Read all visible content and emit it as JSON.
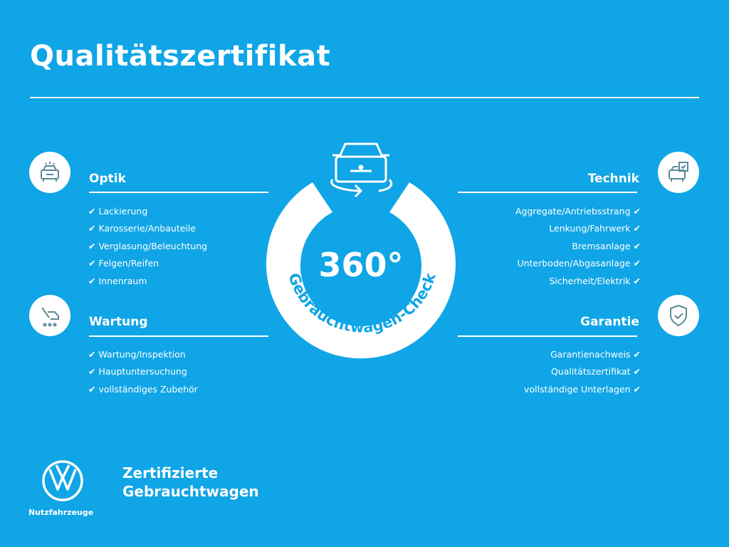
{
  "title": "Qualitätszertifikat",
  "colors": {
    "background": "#0fa5e6",
    "foreground": "#ffffff",
    "icon": "#5a8a9a"
  },
  "center": {
    "big": "360°",
    "arc_text": "Gebrauchtwagen-Check",
    "icon": "car-rotate-icon"
  },
  "check_glyph": "✔",
  "sections": {
    "optik": {
      "heading": "Optik",
      "icon": "car-front-icon",
      "items": [
        "Lackierung",
        "Karosserie/Anbauteile",
        "Verglasung/Beleuchtung",
        "Felgen/Reifen",
        "Innenraum"
      ]
    },
    "wartung": {
      "heading": "Wartung",
      "icon": "wrench-car-icon",
      "items": [
        "Wartung/Inspektion",
        "Hauptuntersuchung",
        "vollständiges Zubehör"
      ]
    },
    "technik": {
      "heading": "Technik",
      "icon": "car-checklist-icon",
      "items": [
        "Aggregate/Antriebsstrang",
        "Lenkung/Fahrwerk",
        "Bremsanlage",
        "Unterboden/Abgasanlage",
        "Sicherheit/Elektrik"
      ]
    },
    "garantie": {
      "heading": "Garantie",
      "icon": "shield-check-icon",
      "items": [
        "Garantienachweis",
        "Qualitätszertifikat",
        "vollständige Unterlagen"
      ]
    }
  },
  "footer": {
    "brand_line1": "Zertifizierte",
    "brand_line2": "Gebrauchtwagen",
    "logo_caption": "Nutzfahrzeuge",
    "logo": "vw-logo"
  }
}
